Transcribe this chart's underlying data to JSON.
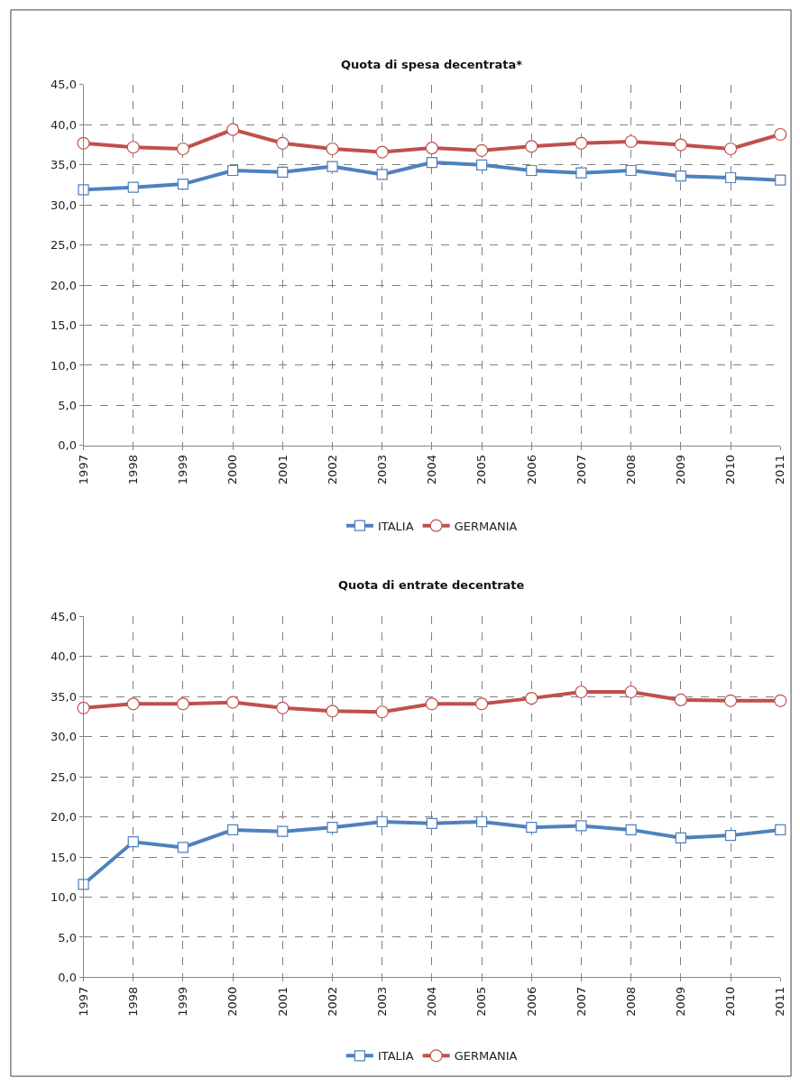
{
  "chart_data": [
    {
      "type": "line",
      "title": "Quota di spesa decentrata*",
      "categories": [
        "1997",
        "1998",
        "1999",
        "2000",
        "2001",
        "2002",
        "2003",
        "2004",
        "2005",
        "2006",
        "2007",
        "2008",
        "2009",
        "2010",
        "2011"
      ],
      "ylim": [
        0,
        45
      ],
      "yticks": [
        {
          "value": 0,
          "label": "0,0"
        },
        {
          "value": 5,
          "label": "5,0"
        },
        {
          "value": 10,
          "label": "10,0"
        },
        {
          "value": 15,
          "label": "15,0"
        },
        {
          "value": 20,
          "label": "20,0"
        },
        {
          "value": 25,
          "label": "25,0"
        },
        {
          "value": 30,
          "label": "30,0"
        },
        {
          "value": 35,
          "label": "35,0"
        },
        {
          "value": 40,
          "label": "40,0"
        },
        {
          "value": 45,
          "label": "45,0"
        }
      ],
      "grid": true,
      "legend": "bottom",
      "line_style": "solid",
      "series": [
        {
          "name": "ITALIA",
          "color": "#4f81bd",
          "marker": "square",
          "values": [
            31.9,
            32.2,
            32.6,
            34.3,
            34.1,
            34.8,
            33.8,
            35.3,
            35.0,
            34.3,
            34.0,
            34.3,
            33.6,
            33.4,
            33.1
          ]
        },
        {
          "name": "GERMANIA",
          "color": "#c0504d",
          "marker": "circle",
          "values": [
            37.7,
            37.2,
            37.0,
            39.4,
            37.7,
            37.0,
            36.6,
            37.1,
            36.8,
            37.3,
            37.7,
            37.9,
            37.5,
            37.0,
            38.8
          ]
        }
      ]
    },
    {
      "type": "line",
      "title": "Quota di entrate decentrate",
      "categories": [
        "1997",
        "1998",
        "1999",
        "2000",
        "2001",
        "2002",
        "2003",
        "2004",
        "2005",
        "2006",
        "2007",
        "2008",
        "2009",
        "2010",
        "2011"
      ],
      "ylim": [
        0,
        45
      ],
      "yticks": [
        {
          "value": 0,
          "label": "0,0"
        },
        {
          "value": 5,
          "label": "5,0"
        },
        {
          "value": 10,
          "label": "10,0"
        },
        {
          "value": 15,
          "label": "15,0"
        },
        {
          "value": 20,
          "label": "20,0"
        },
        {
          "value": 25,
          "label": "25,0"
        },
        {
          "value": 30,
          "label": "30,0"
        },
        {
          "value": 35,
          "label": "35,0"
        },
        {
          "value": 40,
          "label": "40,0"
        },
        {
          "value": 45,
          "label": "45,0"
        }
      ],
      "grid": true,
      "legend": "bottom",
      "line_style": "solid",
      "series": [
        {
          "name": "ITALIA",
          "color": "#4f81bd",
          "marker": "square",
          "values": [
            11.6,
            16.9,
            16.2,
            18.4,
            18.2,
            18.7,
            19.4,
            19.2,
            19.4,
            18.7,
            18.9,
            18.4,
            17.4,
            17.7,
            18.4
          ]
        },
        {
          "name": "GERMANIA",
          "color": "#c0504d",
          "marker": "circle",
          "values": [
            33.6,
            34.1,
            34.1,
            34.3,
            33.6,
            33.2,
            33.1,
            34.1,
            34.1,
            34.8,
            35.6,
            35.6,
            34.6,
            34.5,
            34.5
          ]
        }
      ]
    }
  ]
}
